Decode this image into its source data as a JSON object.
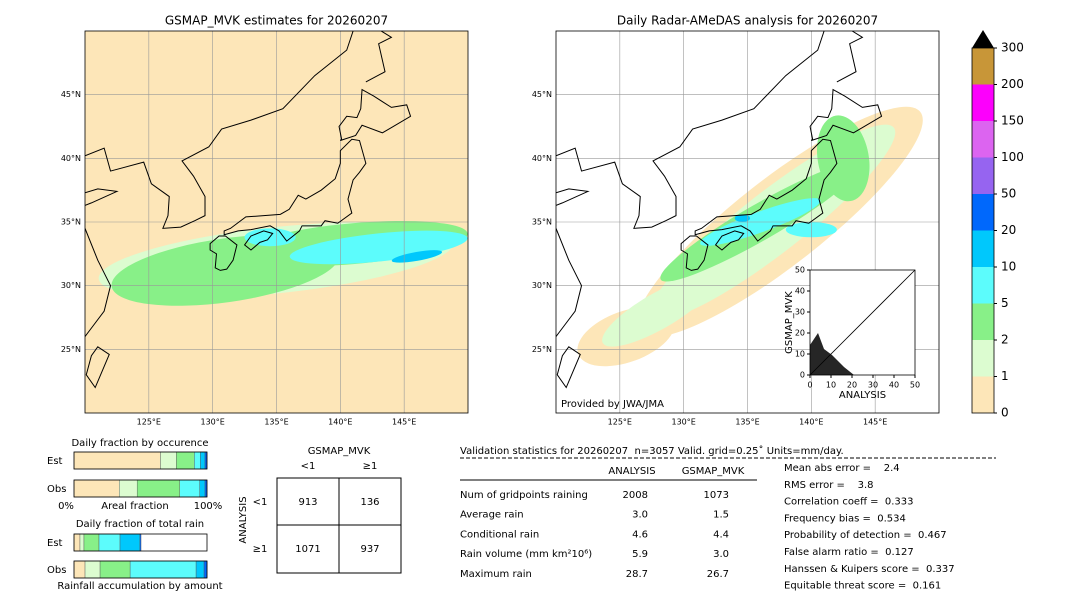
{
  "maps": [
    {
      "title": "GSMAP_MVK estimates for 20260207",
      "lat_labels": [
        "45°N",
        "40°N",
        "35°N",
        "30°N",
        "25°N"
      ],
      "lon_labels": [
        "125°E",
        "130°E",
        "135°E",
        "140°E",
        "145°E"
      ]
    },
    {
      "title": "Daily Radar-AMeDAS analysis for 20260207",
      "lat_labels": [
        "45°N",
        "40°N",
        "35°N",
        "30°N",
        "25°N"
      ],
      "lon_labels": [
        "125°E",
        "130°E",
        "135°E",
        "140°E",
        "145°E"
      ],
      "credit": "Provided by JWA/JMA"
    }
  ],
  "scatter": {
    "xlabel": "ANALYSIS",
    "ylabel": "GSMAP_MVK",
    "xlim": [
      0,
      50
    ],
    "ylim": [
      0,
      50
    ],
    "xticks": [
      0,
      10,
      20,
      30,
      40,
      50
    ],
    "yticks": [
      0,
      10,
      20,
      30,
      40,
      50
    ]
  },
  "colorbar": {
    "levels": [
      0,
      1,
      2,
      5,
      10,
      20,
      50,
      100,
      150,
      200,
      300
    ],
    "colors": [
      "#fde6b8",
      "#dcfcd0",
      "#88f088",
      "#5cfcfc",
      "#00c8fc",
      "#0068fc",
      "#9664f0",
      "#dc64f0",
      "#fc00fc",
      "#c89638"
    ],
    "extend_color": "#000000"
  },
  "occurrence": {
    "title": "Daily fraction by occurence",
    "rows": [
      {
        "label": "Est",
        "segments": [
          65,
          12,
          13.5,
          4.5,
          3.5,
          1.5
        ]
      },
      {
        "label": "Obs",
        "segments": [
          34,
          13.5,
          32,
          15,
          4,
          1.5
        ]
      }
    ],
    "x_labels": [
      "0%",
      "Areal fraction",
      "100%"
    ]
  },
  "total_rain": {
    "title": "Daily fraction of total rain",
    "rows": [
      {
        "label": "Est",
        "segments": [
          4.5,
          3,
          11.3,
          15.8,
          15,
          0.8
        ]
      },
      {
        "label": "Obs",
        "segments": [
          8.3,
          11.3,
          22.6,
          49.6,
          6,
          2.3
        ]
      }
    ],
    "xlabel": "Rainfall accumulation by amount"
  },
  "contingency": {
    "title": "GSMAP_MVK",
    "col_labels": [
      "<1",
      "≥1"
    ],
    "row_title": "ANALYSIS",
    "row_labels": [
      "<1",
      "≥1"
    ],
    "cells": [
      [
        913,
        136
      ],
      [
        1071,
        937
      ]
    ]
  },
  "validation": {
    "header": "Validation statistics for 20260207  n=3057 Valid. grid=0.25˚ Units=mm/day.",
    "columns": [
      "ANALYSIS",
      "GSMAP_MVK"
    ],
    "rows": [
      [
        "Num of gridpoints raining",
        "2008",
        "1073"
      ],
      [
        "Average rain",
        "3.0",
        "1.5"
      ],
      [
        "Conditional rain",
        "4.6",
        "4.4"
      ],
      [
        "Rain volume (mm km²10⁶)",
        "5.9",
        "3.0"
      ],
      [
        "Maximum rain",
        "28.7",
        "26.7"
      ]
    ],
    "scores": [
      "Mean abs error =    2.4",
      "RMS error =    3.8",
      "Correlation coeff =  0.333",
      "Frequency bias =  0.534",
      "Probability of detection =  0.467",
      "False alarm ratio =  0.127",
      "Hanssen & Kuipers score =  0.337",
      "Equitable threat score =  0.161"
    ]
  }
}
